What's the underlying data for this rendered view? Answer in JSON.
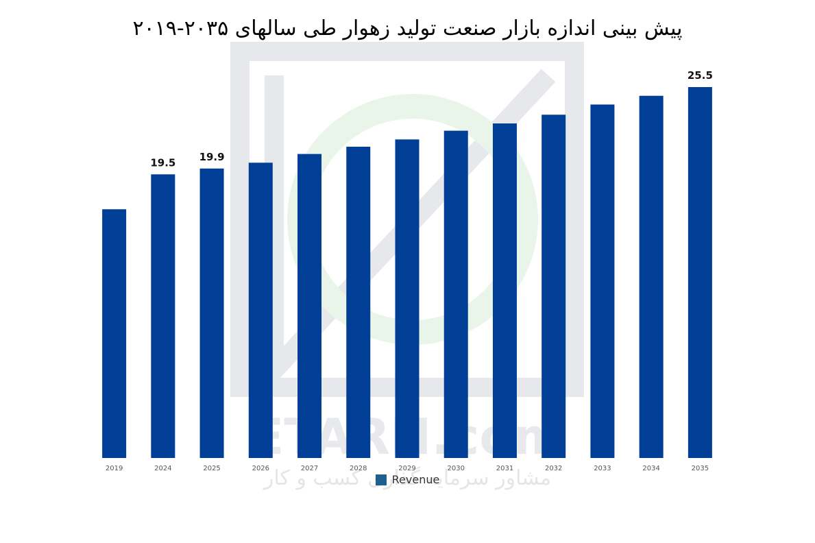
{
  "colors": {
    "bar": "#003f95",
    "legend_swatch": "#1f5f8b",
    "watermark": "#e6e8ec"
  },
  "watermark": {
    "brand": "ETARH.com",
    "tagline": "مشاور سرمایه گذاری کسب و کار",
    "logo_icon": "etarh-logo-icon"
  },
  "chart_data": {
    "type": "bar",
    "title": "پیش بینی اندازه بازار صنعت تولید زهوار طی سالهای ۲۰۳۵-۲۰۱۹",
    "xlabel": "",
    "ylabel": "",
    "categories": [
      "2019",
      "2024",
      "2025",
      "2026",
      "2027",
      "2028",
      "2029",
      "2030",
      "2031",
      "2032",
      "2033",
      "2034",
      "2035"
    ],
    "series": [
      {
        "name": "Revenue",
        "values": [
          17.1,
          19.5,
          19.9,
          20.3,
          20.9,
          21.4,
          21.9,
          22.5,
          23.0,
          23.6,
          24.3,
          24.9,
          25.5
        ],
        "data_labels": [
          "",
          "19.5",
          "19.9",
          "",
          "",
          "",
          "",
          "",
          "",
          "",
          "",
          "",
          "25.5"
        ]
      }
    ],
    "ylim": [
      0,
      25.5
    ],
    "grid": false,
    "legend_position": "bottom-center"
  }
}
